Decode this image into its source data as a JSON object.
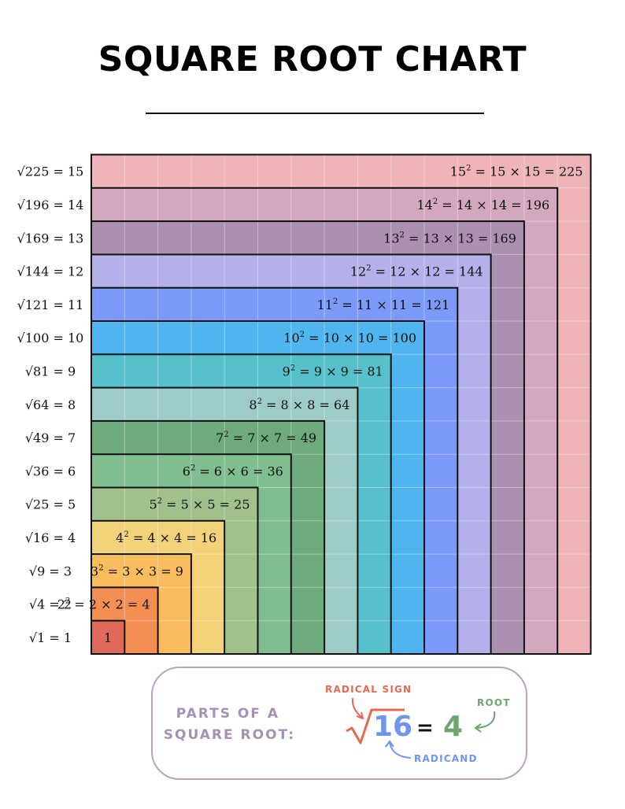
{
  "title": "SQUARE ROOT CHART",
  "chart_data": {
    "type": "nested squares",
    "n": [
      1,
      2,
      3,
      4,
      5,
      6,
      7,
      8,
      9,
      10,
      11,
      12,
      13,
      14,
      15
    ],
    "squares": [
      1,
      4,
      9,
      16,
      25,
      36,
      49,
      64,
      81,
      100,
      121,
      144,
      169,
      196,
      225
    ],
    "root_labels": [
      "√1 = 1",
      "√4 = 2",
      "√9 = 3",
      "√16 = 4",
      "√25 = 5",
      "√36 = 6",
      "√49 = 7",
      "√64 = 8",
      "√81 = 9",
      "√100 = 10",
      "√121 = 11",
      "√144 = 12",
      "√169 = 13",
      "√196 = 14",
      "√225 = 15"
    ],
    "square_labels": [
      "1",
      "2² = 2 × 2 = 4",
      "3² = 3 × 3 = 9",
      "4² = 4 × 4 = 16",
      "5² = 5 × 5 = 25",
      "6² = 6 × 6 = 36",
      "7² = 7 × 7 = 49",
      "8² = 8 × 8 = 64",
      "9² = 9 × 9 = 81",
      "10² = 10 × 10 = 100",
      "11² = 11 × 11 = 121",
      "12² = 12 × 12 = 144",
      "13² = 13 × 13 = 169",
      "14² = 14 × 14 = 196",
      "15² = 15 × 15 = 225"
    ],
    "colors": [
      "#e06a5a",
      "#f48e52",
      "#fabd5e",
      "#f3d27a",
      "#a2c08a",
      "#80be92",
      "#6faa7f",
      "#9ccbc8",
      "#56c1cc",
      "#4fb5ef",
      "#7b9afa",
      "#b3b0ea",
      "#ab91af",
      "#d3a7be",
      "#efb4b8"
    ]
  },
  "parts": {
    "heading_line1": "PARTS OF A",
    "heading_line2": "SQUARE ROOT:",
    "radical_sign_label": "RADICAL SIGN",
    "root_label": "ROOT",
    "radicand_label": "RADICAND",
    "radicand_value": "16",
    "equals": "=",
    "root_value": "4",
    "colors": {
      "radical_sign": "#e36a4f",
      "radicand": "#6f95f0",
      "root": "#6fa66e",
      "heading": "#a98fb6"
    }
  }
}
